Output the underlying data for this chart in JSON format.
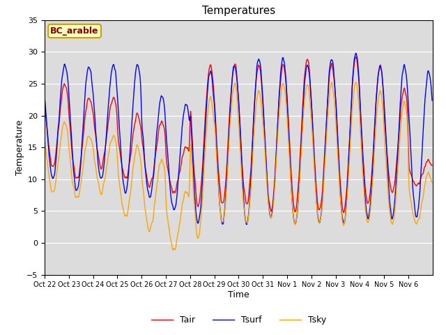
{
  "title": "Temperatures",
  "xlabel": "Time",
  "ylabel": "Temperature",
  "ylim": [
    -5,
    35
  ],
  "yticks": [
    -5,
    0,
    5,
    10,
    15,
    20,
    25,
    30,
    35
  ],
  "xtick_labels": [
    "Oct 22",
    "Oct 23",
    "Oct 24",
    "Oct 25",
    "Oct 26",
    "Oct 27",
    "Oct 28",
    "Oct 29",
    "Oct 30",
    "Oct 31",
    "Nov 1",
    "Nov 2",
    "Nov 3",
    "Nov 4",
    "Nov 5",
    "Nov 6"
  ],
  "annotation_text": "BC_arable",
  "annotation_color": "#8B0000",
  "annotation_bg": "#FFFFC0",
  "annotation_border": "#C8A000",
  "line_colors": {
    "Tair": "#FF0000",
    "Tsurf": "#0000FF",
    "Tsky": "#FFA500"
  },
  "line_width": 1.0,
  "bg_color": "#DCDCDC",
  "n_days": 16,
  "pts_per_day": 48
}
